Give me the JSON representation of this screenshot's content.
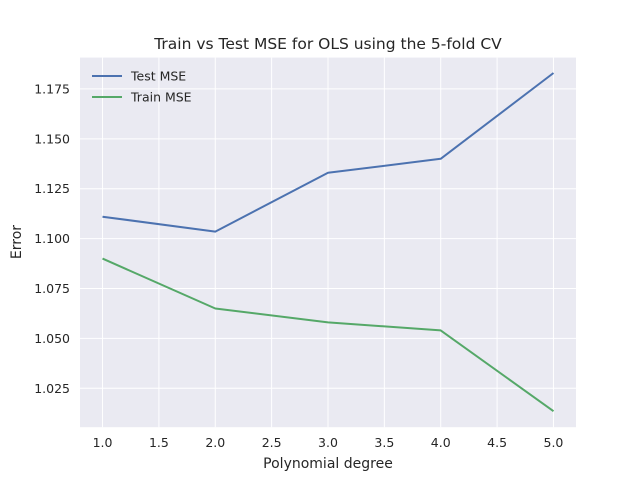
{
  "chart_data": {
    "type": "line",
    "title": "Train vs Test MSE for OLS using the 5-fold CV",
    "xlabel": "Polynomial degree",
    "ylabel": "Error",
    "x": [
      1.0,
      2.0,
      3.0,
      4.0,
      5.0
    ],
    "series": [
      {
        "name": "Test MSE",
        "color": "#4c72b0",
        "values": [
          1.111,
          1.1035,
          1.133,
          1.14,
          1.183
        ]
      },
      {
        "name": "Train MSE",
        "color": "#55a868",
        "values": [
          1.09,
          1.065,
          1.058,
          1.054,
          1.0135
        ]
      }
    ],
    "xlim": [
      0.8,
      5.2
    ],
    "ylim": [
      1.0055,
      1.1907
    ],
    "xticks": [
      1.0,
      1.5,
      2.0,
      2.5,
      3.0,
      3.5,
      4.0,
      4.5,
      5.0
    ],
    "xtick_labels": [
      "1.0",
      "1.5",
      "2.0",
      "2.5",
      "3.0",
      "3.5",
      "4.0",
      "4.5",
      "5.0"
    ],
    "yticks": [
      1.025,
      1.05,
      1.075,
      1.1,
      1.125,
      1.15,
      1.175
    ],
    "ytick_labels": [
      "1.025",
      "1.050",
      "1.075",
      "1.100",
      "1.125",
      "1.150",
      "1.175"
    ],
    "grid": true,
    "legend_position": "top-left",
    "background_color": "#eaeaf2",
    "grid_color": "#ffffff"
  }
}
